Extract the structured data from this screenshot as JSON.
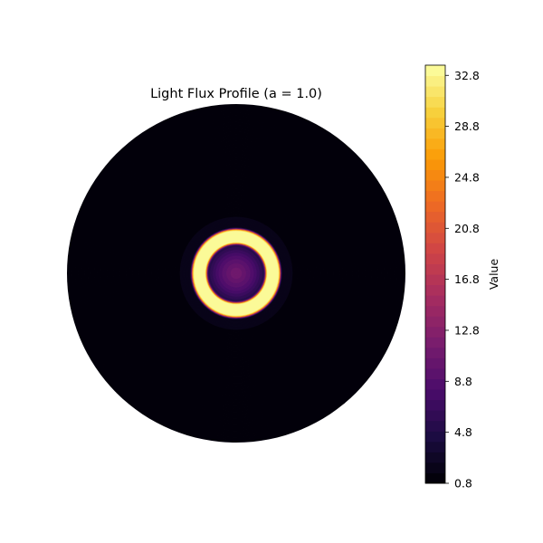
{
  "chart_data": {
    "type": "heatmap",
    "projection": "polar",
    "title": "Light Flux Profile (a = 1.0)",
    "colormap": "inferno",
    "profile": {
      "r_max": 1.0,
      "ring_radius": 0.22,
      "ring_half_width": 0.045,
      "ring_value": 33.6,
      "center_value": 9.5,
      "halo_value": 2.0,
      "background_value": 0.8
    },
    "colorbar": {
      "label": "Value",
      "min": 0.8,
      "max": 33.6,
      "levels": 41,
      "ticks": [
        0.8,
        4.8,
        8.8,
        12.8,
        16.8,
        20.8,
        24.8,
        28.8,
        32.8
      ],
      "tick_labels": [
        "0.8",
        "4.8",
        "8.8",
        "12.8",
        "16.8",
        "20.8",
        "24.8",
        "28.8",
        "32.8"
      ]
    },
    "grid": false
  },
  "colors": {
    "inferno_stops": [
      "#000004",
      "#1b0c41",
      "#4a0c6b",
      "#781c6d",
      "#a52c60",
      "#cf4446",
      "#ed6925",
      "#fb9b06",
      "#f7d13d",
      "#fcffa4"
    ]
  }
}
